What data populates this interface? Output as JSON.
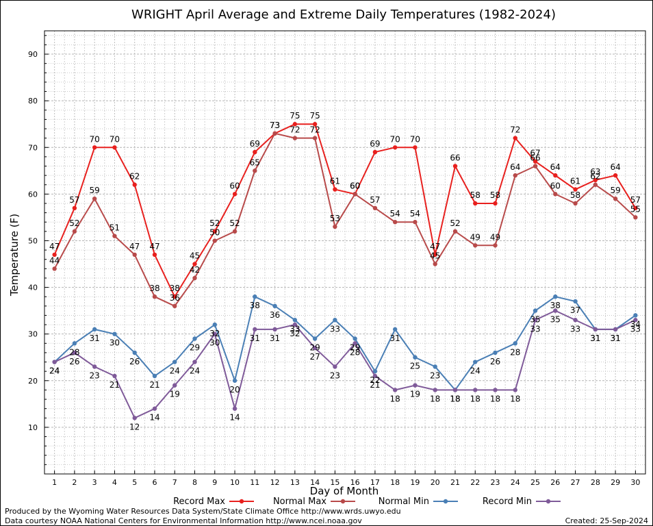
{
  "chart_data": {
    "type": "line",
    "title": "WRIGHT April Average and Extreme Daily Temperatures (1982-2024)",
    "xlabel": "Day of Month",
    "ylabel": "Temperature (F)",
    "ylim": [
      0,
      95
    ],
    "xlim": [
      0.5,
      30.5
    ],
    "yticks": [
      10,
      20,
      30,
      40,
      50,
      60,
      70,
      80,
      90
    ],
    "x": [
      1,
      2,
      3,
      4,
      5,
      6,
      7,
      8,
      9,
      10,
      11,
      12,
      13,
      14,
      15,
      16,
      17,
      18,
      19,
      20,
      21,
      22,
      23,
      24,
      25,
      26,
      27,
      28,
      29,
      30
    ],
    "grid": true,
    "legend_position": "bottom",
    "series": [
      {
        "name": "Record Max",
        "color": "#e8201e",
        "values": [
          47,
          57,
          70,
          70,
          62,
          47,
          38,
          45,
          52,
          60,
          69,
          73,
          75,
          75,
          61,
          60,
          69,
          70,
          70,
          47,
          66,
          58,
          58,
          72,
          67,
          64,
          61,
          63,
          64,
          57
        ]
      },
      {
        "name": "Normal Max",
        "color": "#b84a4a",
        "values": [
          44,
          52,
          59,
          51,
          47,
          38,
          36,
          42,
          50,
          52,
          65,
          73,
          72,
          72,
          53,
          60,
          57,
          54,
          54,
          45,
          52,
          49,
          49,
          64,
          66,
          60,
          58,
          62,
          59,
          55
        ]
      },
      {
        "name": "Normal Min",
        "color": "#4a7fb5",
        "values": [
          24,
          28,
          31,
          30,
          26,
          21,
          24,
          29,
          32,
          20,
          38,
          36,
          33,
          29,
          33,
          29,
          22,
          31,
          25,
          23,
          18,
          24,
          26,
          28,
          35,
          38,
          37,
          31,
          31,
          34
        ]
      },
      {
        "name": "Record Min",
        "color": "#7f5a99",
        "values": [
          24,
          26,
          23,
          21,
          12,
          14,
          19,
          24,
          30,
          14,
          31,
          31,
          32,
          27,
          23,
          28,
          21,
          18,
          19,
          18,
          18,
          18,
          18,
          18,
          33,
          35,
          33,
          31,
          31,
          33
        ]
      }
    ]
  },
  "footer": {
    "produced_by": "Produced by the Wyoming Water Resources Data System/State Climate Office http://www.wrds.uwyo.edu",
    "data_courtesy": "Data courtesy NOAA National Centers for Environmental Information http://www.ncei.noaa.gov",
    "created": "Created: 25-Sep-2024"
  }
}
